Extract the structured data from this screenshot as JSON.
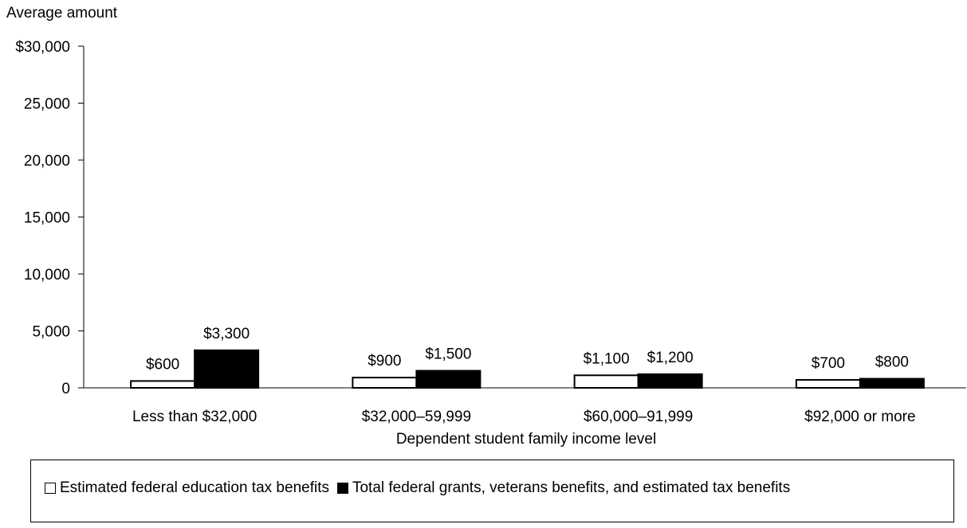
{
  "chart_data": {
    "type": "bar",
    "ylabel": "Average amount",
    "xlabel": "Dependent student family income level",
    "ylim": [
      0,
      30000
    ],
    "yticks": [
      {
        "value": 0,
        "label": "0"
      },
      {
        "value": 5000,
        "label": "5,000"
      },
      {
        "value": 10000,
        "label": "10,000"
      },
      {
        "value": 15000,
        "label": "15,000"
      },
      {
        "value": 20000,
        "label": "20,000"
      },
      {
        "value": 25000,
        "label": "25,000"
      },
      {
        "value": 30000,
        "label": "$30,000"
      }
    ],
    "categories": [
      "Less than $32,000",
      "$32,000–59,999",
      "$60,000–91,999",
      "$92,000 or more"
    ],
    "series": [
      {
        "name": "Estimated federal education tax benefits",
        "color": "#ffffff",
        "values": [
          600,
          900,
          1100,
          700
        ],
        "labels": [
          "$600",
          "$900",
          "$1,100",
          "$700"
        ]
      },
      {
        "name": "Total federal grants, veterans benefits, and estimated tax benefits",
        "color": "#000000",
        "values": [
          3300,
          1500,
          1200,
          800
        ],
        "labels": [
          "$3,300",
          "$1,500",
          "$1,200",
          "$800"
        ]
      }
    ],
    "grid": false,
    "legend_position": "bottom"
  }
}
